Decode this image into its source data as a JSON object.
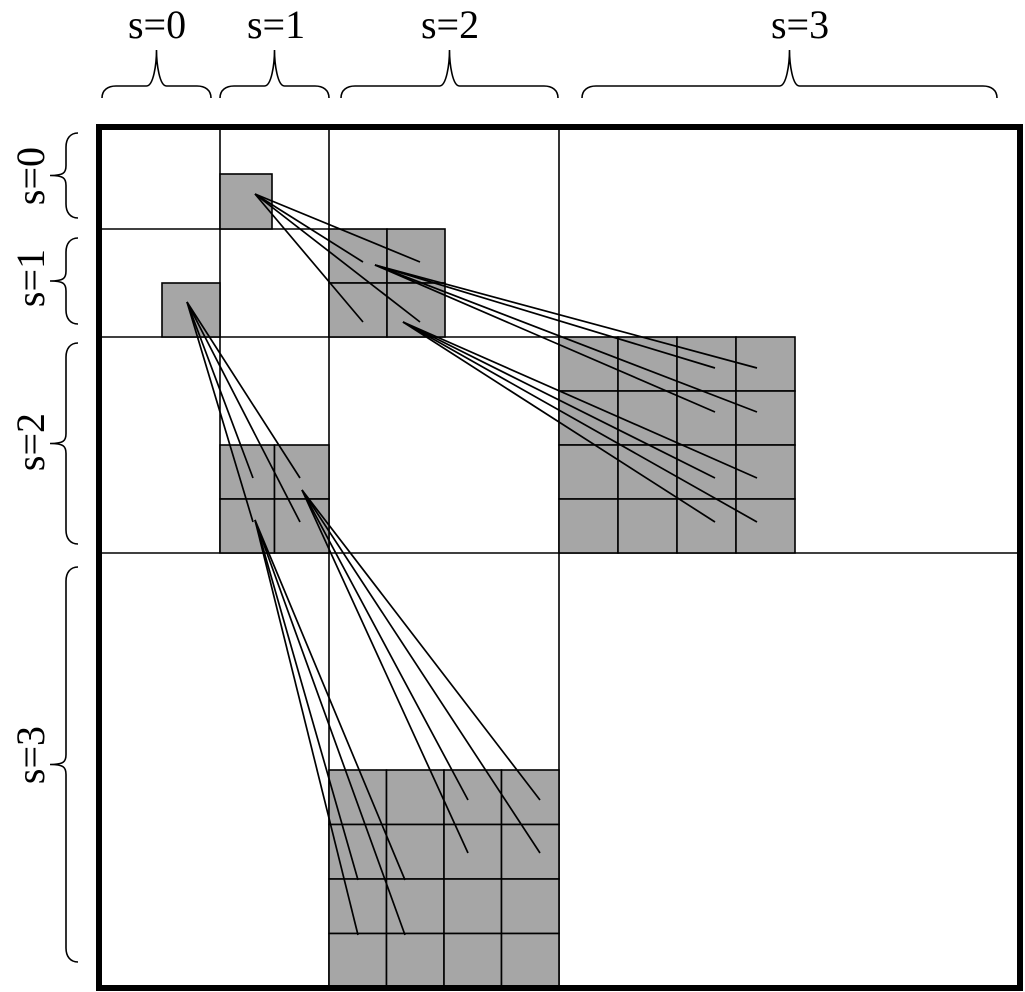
{
  "labels": {
    "top": [
      "s=0",
      "s=1",
      "s=2",
      "s=3"
    ],
    "left": [
      "s=0",
      "s=1",
      "s=2",
      "s=3"
    ]
  },
  "colors": {
    "cell_fill": "#a6a6a6",
    "line": "#000000",
    "background": "#ffffff"
  }
}
